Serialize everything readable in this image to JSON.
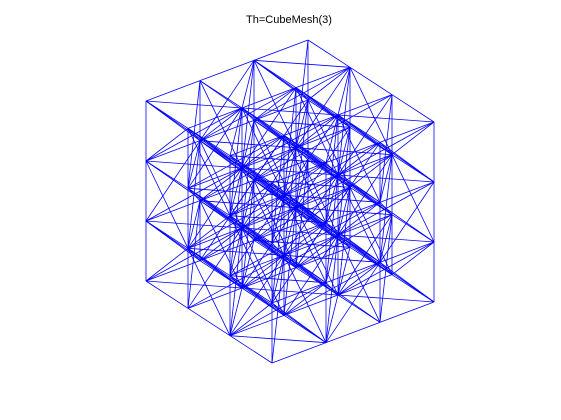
{
  "title": "Th=CubeMesh(3)"
}
